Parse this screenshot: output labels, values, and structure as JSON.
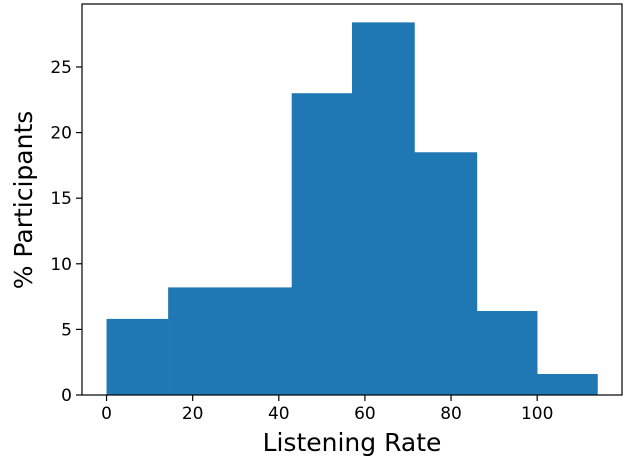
{
  "chart_data": {
    "type": "bar",
    "subtype": "histogram",
    "bins": [
      {
        "x0": 0,
        "x1": 14.3,
        "value": 5.8
      },
      {
        "x0": 14.3,
        "x1": 43,
        "value": 8.2
      },
      {
        "x0": 43,
        "x1": 57,
        "value": 23.0
      },
      {
        "x0": 57,
        "x1": 71.5,
        "value": 28.4
      },
      {
        "x0": 71.5,
        "x1": 86,
        "value": 18.5
      },
      {
        "x0": 86,
        "x1": 100,
        "value": 6.4
      },
      {
        "x0": 100,
        "x1": 114,
        "value": 1.6
      }
    ],
    "xlabel": "Listening Rate",
    "ylabel": "% Participants",
    "xticks": [
      "0",
      "20",
      "40",
      "60",
      "80",
      "100"
    ],
    "yticks": [
      "0",
      "5",
      "10",
      "15",
      "20",
      "25"
    ],
    "xlim": [
      -5.7,
      119.7
    ],
    "ylim": [
      0,
      29.8
    ],
    "grid": false,
    "color": "#1f77b4"
  }
}
